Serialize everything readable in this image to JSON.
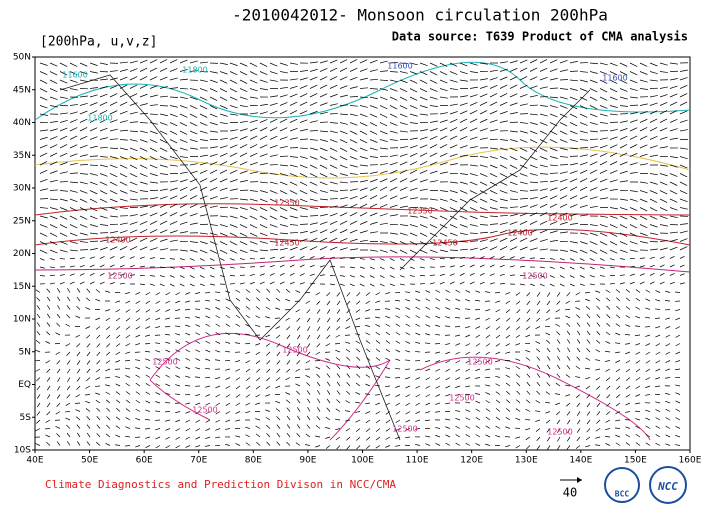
{
  "header": {
    "title": "-2010042012- Monsoon circulation 200hPa",
    "variables": "[200hPa, u,v,z]",
    "source": "Data source: T639 Product of CMA analysis"
  },
  "map": {
    "lat_labels": [
      "50N",
      "45N",
      "40N",
      "35N",
      "30N",
      "25N",
      "20N",
      "15N",
      "10N",
      "5N",
      "EQ",
      "5S",
      "10S"
    ],
    "lon_labels": [
      "40E",
      "50E",
      "60E",
      "70E",
      "80E",
      "90E",
      "100E",
      "110E",
      "120E",
      "130E",
      "140E",
      "150E",
      "160E"
    ],
    "contour_labels": [
      "11600",
      "11600",
      "11800",
      "11600",
      "11800",
      "12350",
      "12350",
      "12400",
      "12400",
      "12450",
      "12450",
      "12400",
      "12500",
      "12500",
      "12500",
      "12500",
      "12500",
      "12500",
      "12500",
      "12500",
      "12500"
    ]
  },
  "footer": {
    "credit": "Climate Diagnostics and Prediction Divison in NCC/CMA",
    "scale": "40",
    "logos": [
      "BCC",
      "NCC"
    ]
  }
}
